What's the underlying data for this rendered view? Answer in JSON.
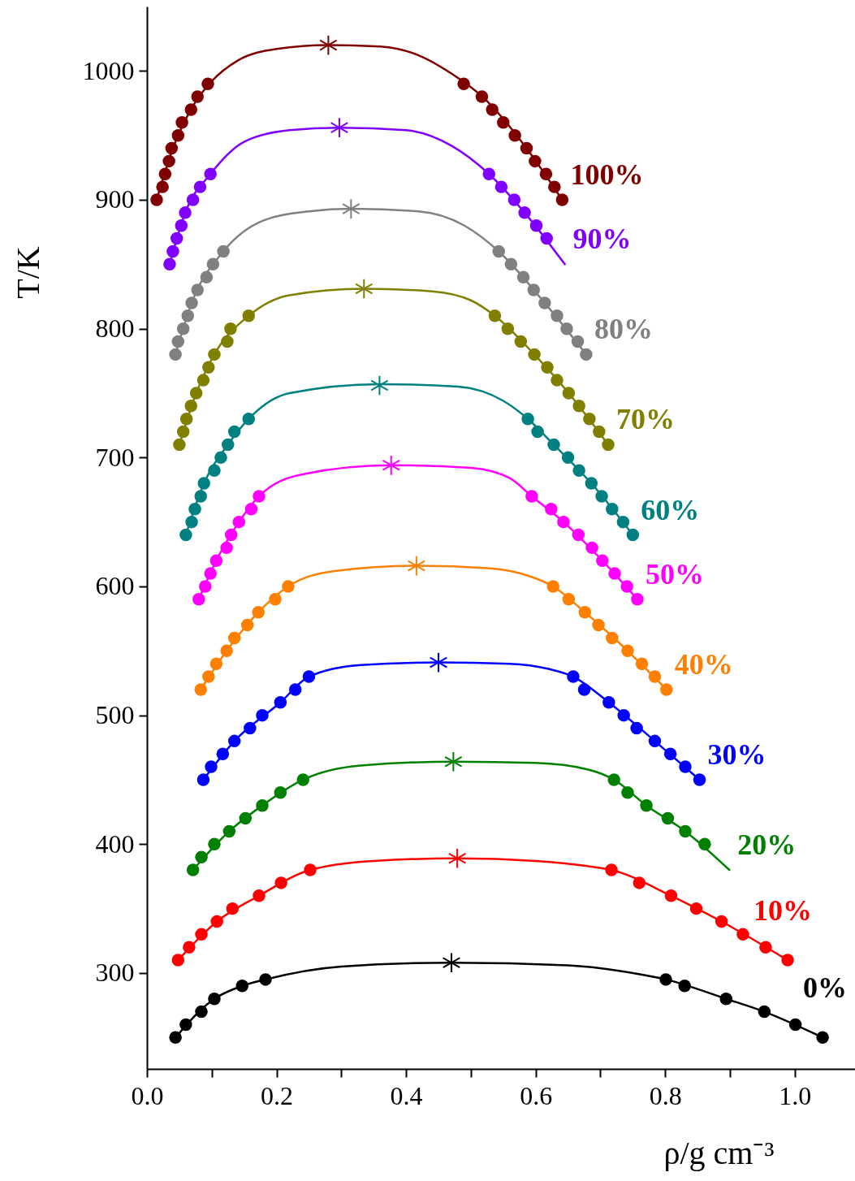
{
  "chart_data": {
    "type": "scatter",
    "xlabel": "ρ/g cm⁻³",
    "ylabel": "T/K",
    "xlim": [
      0,
      1.093
    ],
    "ylim": [
      225.6,
      1050
    ],
    "xticks": [
      {
        "value": 0,
        "label": "0.0"
      },
      {
        "value": 0.1,
        "label": null
      },
      0.2,
      {
        "value": 0.3,
        "label": null
      },
      0.4,
      {
        "value": 0.5,
        "label": null
      },
      0.6,
      {
        "value": 0.7,
        "label": null
      },
      0.8,
      {
        "value": 0.9,
        "label": null
      },
      {
        "value": 1,
        "label": "1.0"
      }
    ],
    "yticks": [
      300,
      400,
      500,
      600,
      700,
      800,
      900,
      1000
    ],
    "marker": "circle",
    "series": [
      {
        "color": "#800000",
        "x": [
          0.015,
          0.024,
          0.028,
          0.034,
          0.038,
          0.048,
          0.054,
          0.068,
          0.078,
          0.094,
          0.489,
          0.517,
          0.533,
          0.55,
          0.568,
          0.586,
          0.599,
          0.616,
          0.629,
          0.641
        ],
        "values": [
          900,
          910,
          920,
          930,
          940,
          950,
          960,
          970,
          980,
          990,
          990,
          980,
          970,
          960,
          950,
          940,
          930,
          920,
          910,
          900
        ]
      },
      {
        "type": "line",
        "marker": "none",
        "name": "100%",
        "color": "#800000",
        "line_style": "solid",
        "x": [
          0.015,
          0.04,
          0.07,
          0.1,
          0.14,
          0.2,
          0.28,
          0.36,
          0.42,
          0.47,
          0.52,
          0.58,
          0.641
        ],
        "values": [
          900,
          940,
          972,
          992,
          1008,
          1017,
          1020,
          1019,
          1012,
          998,
          979,
          944,
          900
        ]
      },
      {
        "marker": "cross",
        "color": "#800000",
        "x": [
          0.28
        ],
        "values": [
          1020
        ]
      },
      {
        "color": "#8000ff",
        "x": [
          0.035,
          0.04,
          0.046,
          0.053,
          0.059,
          0.071,
          0.082,
          0.098,
          0.528,
          0.547,
          0.567,
          0.583,
          0.601,
          0.617
        ],
        "values": [
          850,
          860,
          870,
          880,
          890,
          900,
          910,
          920,
          920,
          910,
          900,
          890,
          880,
          870
        ]
      },
      {
        "type": "line",
        "marker": "none",
        "name": "90%",
        "color": "#8000ff",
        "line_style": "solid",
        "x": [
          0.035,
          0.059,
          0.098,
          0.15,
          0.22,
          0.297,
          0.4,
          0.47,
          0.528,
          0.583,
          0.645
        ],
        "values": [
          850,
          890,
          920,
          945,
          954,
          956,
          954,
          942,
          920,
          890,
          850
        ]
      },
      {
        "marker": "cross",
        "color": "#8000ff",
        "x": [
          0.297
        ],
        "values": [
          956
        ]
      },
      {
        "color": "#808080",
        "x": [
          0.044,
          0.048,
          0.056,
          0.063,
          0.069,
          0.078,
          0.092,
          0.102,
          0.118,
          0.543,
          0.562,
          0.581,
          0.597,
          0.614,
          0.633,
          0.648,
          0.665,
          0.678
        ],
        "values": [
          780,
          790,
          800,
          810,
          820,
          830,
          840,
          850,
          860,
          860,
          850,
          840,
          830,
          820,
          810,
          800,
          790,
          780
        ]
      },
      {
        "type": "line",
        "marker": "none",
        "name": "80%",
        "color": "#808080",
        "line_style": "solid",
        "x": [
          0.044,
          0.069,
          0.118,
          0.18,
          0.25,
          0.315,
          0.42,
          0.49,
          0.543,
          0.614,
          0.678
        ],
        "values": [
          780,
          820,
          860,
          884,
          891,
          893,
          891,
          880,
          860,
          820,
          780
        ]
      },
      {
        "marker": "cross",
        "color": "#808080",
        "x": [
          0.315
        ],
        "values": [
          893
        ]
      },
      {
        "color": "#808000",
        "x": [
          0.05,
          0.056,
          0.061,
          0.068,
          0.076,
          0.087,
          0.095,
          0.104,
          0.124,
          0.129,
          0.157,
          0.537,
          0.557,
          0.577,
          0.598,
          0.618,
          0.633,
          0.651,
          0.667,
          0.683,
          0.698,
          0.712
        ],
        "values": [
          710,
          720,
          730,
          740,
          750,
          760,
          770,
          780,
          790,
          800,
          810,
          810,
          800,
          790,
          780,
          770,
          760,
          750,
          740,
          730,
          720,
          710
        ]
      },
      {
        "type": "line",
        "marker": "none",
        "name": "70%",
        "color": "#808000",
        "line_style": "solid",
        "x": [
          0.05,
          0.076,
          0.104,
          0.157,
          0.22,
          0.335,
          0.44,
          0.5,
          0.537,
          0.598,
          0.651,
          0.712
        ],
        "values": [
          710,
          750,
          780,
          810,
          826,
          831,
          829,
          822,
          810,
          780,
          750,
          710
        ]
      },
      {
        "marker": "cross",
        "color": "#808000",
        "x": [
          0.335
        ],
        "values": [
          831
        ]
      },
      {
        "color": "#008080",
        "x": [
          0.06,
          0.069,
          0.074,
          0.083,
          0.088,
          0.104,
          0.114,
          0.125,
          0.135,
          0.157,
          0.588,
          0.603,
          0.628,
          0.65,
          0.667,
          0.686,
          0.702,
          0.718,
          0.735,
          0.75
        ],
        "values": [
          640,
          650,
          660,
          670,
          680,
          690,
          700,
          710,
          720,
          730,
          730,
          720,
          710,
          700,
          690,
          680,
          670,
          660,
          650,
          640
        ]
      },
      {
        "type": "line",
        "marker": "none",
        "name": "60%",
        "color": "#008080",
        "line_style": "solid",
        "x": [
          0.06,
          0.088,
          0.125,
          0.157,
          0.22,
          0.359,
          0.48,
          0.55,
          0.588,
          0.628,
          0.686,
          0.75
        ],
        "values": [
          640,
          680,
          710,
          730,
          750,
          757,
          755,
          744,
          730,
          710,
          680,
          640
        ]
      },
      {
        "marker": "cross",
        "color": "#008080",
        "x": [
          0.359
        ],
        "values": [
          756
        ]
      },
      {
        "color": "#ff00ff",
        "x": [
          0.08,
          0.09,
          0.098,
          0.107,
          0.123,
          0.13,
          0.142,
          0.161,
          0.173,
          0.594,
          0.624,
          0.643,
          0.666,
          0.687,
          0.703,
          0.722,
          0.741,
          0.757
        ],
        "values": [
          590,
          600,
          610,
          620,
          630,
          640,
          650,
          660,
          670,
          670,
          660,
          650,
          640,
          630,
          620,
          610,
          600,
          590
        ]
      },
      {
        "type": "line",
        "marker": "none",
        "name": "50%",
        "color": "#ff00ff",
        "line_style": "solid",
        "x": [
          0.08,
          0.107,
          0.142,
          0.173,
          0.24,
          0.377,
          0.5,
          0.56,
          0.594,
          0.643,
          0.703,
          0.757
        ],
        "values": [
          590,
          620,
          650,
          670,
          687,
          694,
          692,
          684,
          670,
          650,
          620,
          590
        ]
      },
      {
        "marker": "cross",
        "color": "#ff00ff",
        "x": [
          0.377
        ],
        "values": [
          694
        ]
      },
      {
        "color": "#ff8000",
        "x": [
          0.083,
          0.095,
          0.107,
          0.123,
          0.135,
          0.155,
          0.172,
          0.198,
          0.218,
          0.627,
          0.651,
          0.676,
          0.697,
          0.718,
          0.742,
          0.764,
          0.784,
          0.802
        ],
        "values": [
          520,
          530,
          540,
          550,
          560,
          570,
          580,
          590,
          600,
          600,
          590,
          580,
          570,
          560,
          550,
          540,
          530,
          520
        ]
      },
      {
        "type": "line",
        "marker": "none",
        "name": "40%",
        "color": "#ff8000",
        "line_style": "solid",
        "x": [
          0.083,
          0.123,
          0.172,
          0.218,
          0.29,
          0.416,
          0.53,
          0.59,
          0.627,
          0.676,
          0.742,
          0.802
        ],
        "values": [
          520,
          550,
          580,
          600,
          612,
          616,
          614,
          608,
          600,
          580,
          550,
          520
        ]
      },
      {
        "marker": "cross",
        "color": "#ff8000",
        "x": [
          0.416
        ],
        "values": [
          616
        ]
      },
      {
        "color": "#0000ff",
        "x": [
          0.087,
          0.099,
          0.117,
          0.135,
          0.159,
          0.178,
          0.206,
          0.229,
          0.25,
          0.658,
          0.675,
          0.713,
          0.736,
          0.756,
          0.784,
          0.808,
          0.831,
          0.853
        ],
        "values": [
          450,
          460,
          470,
          480,
          490,
          500,
          510,
          520,
          530,
          530,
          520,
          510,
          500,
          490,
          480,
          470,
          460,
          450
        ]
      },
      {
        "type": "line",
        "marker": "none",
        "name": "30%",
        "color": "#0000ff",
        "line_style": "solid",
        "x": [
          0.087,
          0.135,
          0.206,
          0.25,
          0.33,
          0.45,
          0.56,
          0.62,
          0.658,
          0.713,
          0.784,
          0.853
        ],
        "values": [
          450,
          480,
          510,
          530,
          539,
          541,
          540,
          536,
          530,
          510,
          480,
          450
        ]
      },
      {
        "marker": "cross",
        "color": "#0000ff",
        "x": [
          0.45
        ],
        "values": [
          541
        ]
      },
      {
        "color": "#008000",
        "x": [
          0.071,
          0.084,
          0.104,
          0.127,
          0.152,
          0.178,
          0.206,
          0.241,
          0.721,
          0.742,
          0.771,
          0.804,
          0.831,
          0.861
        ],
        "values": [
          380,
          390,
          400,
          410,
          420,
          430,
          440,
          450,
          450,
          440,
          430,
          420,
          410,
          400
        ]
      },
      {
        "type": "line",
        "marker": "none",
        "name": "20%",
        "color": "#008000",
        "line_style": "solid",
        "x": [
          0.071,
          0.127,
          0.178,
          0.241,
          0.33,
          0.473,
          0.6,
          0.68,
          0.721,
          0.771,
          0.831,
          0.899
        ],
        "values": [
          380,
          410,
          430,
          450,
          461,
          464,
          463,
          458,
          450,
          430,
          410,
          380
        ]
      },
      {
        "marker": "cross",
        "color": "#008000",
        "x": [
          0.473
        ],
        "values": [
          464
        ]
      },
      {
        "color": "#ff0000",
        "x": [
          0.048,
          0.065,
          0.084,
          0.108,
          0.132,
          0.173,
          0.207,
          0.252,
          0.717,
          0.76,
          0.809,
          0.848,
          0.887,
          0.92,
          0.955,
          0.989
        ],
        "values": [
          310,
          320,
          330,
          340,
          350,
          360,
          370,
          380,
          380,
          370,
          360,
          350,
          340,
          330,
          320,
          310
        ]
      },
      {
        "type": "line",
        "marker": "none",
        "name": "10%",
        "color": "#ff0000",
        "line_style": "solid",
        "x": [
          0.048,
          0.108,
          0.173,
          0.252,
          0.35,
          0.479,
          0.6,
          0.68,
          0.717,
          0.809,
          0.887,
          0.989
        ],
        "values": [
          310,
          340,
          360,
          380,
          387,
          389,
          387,
          383,
          380,
          360,
          340,
          310
        ]
      },
      {
        "marker": "cross",
        "color": "#ff0000",
        "x": [
          0.479
        ],
        "values": [
          389
        ]
      },
      {
        "color": "#000000",
        "x": [
          0.044,
          0.06,
          0.084,
          0.104,
          0.147,
          0.183,
          0.801,
          0.83,
          0.894,
          0.953,
          1.001,
          1.043
        ],
        "values": [
          250,
          260,
          270,
          280,
          290,
          295,
          295,
          290,
          280,
          270,
          260,
          250
        ]
      },
      {
        "type": "line",
        "marker": "none",
        "name": "0%",
        "color": "#000000",
        "line_style": "solid",
        "x": [
          0.044,
          0.104,
          0.147,
          0.183,
          0.3,
          0.47,
          0.65,
          0.75,
          0.801,
          0.894,
          0.953,
          1.043
        ],
        "values": [
          250,
          280,
          290,
          295,
          305,
          308,
          306,
          300,
          295,
          280,
          270,
          250
        ]
      },
      {
        "marker": "cross",
        "color": "#000000",
        "x": [
          0.47
        ],
        "values": [
          308
        ]
      }
    ]
  }
}
